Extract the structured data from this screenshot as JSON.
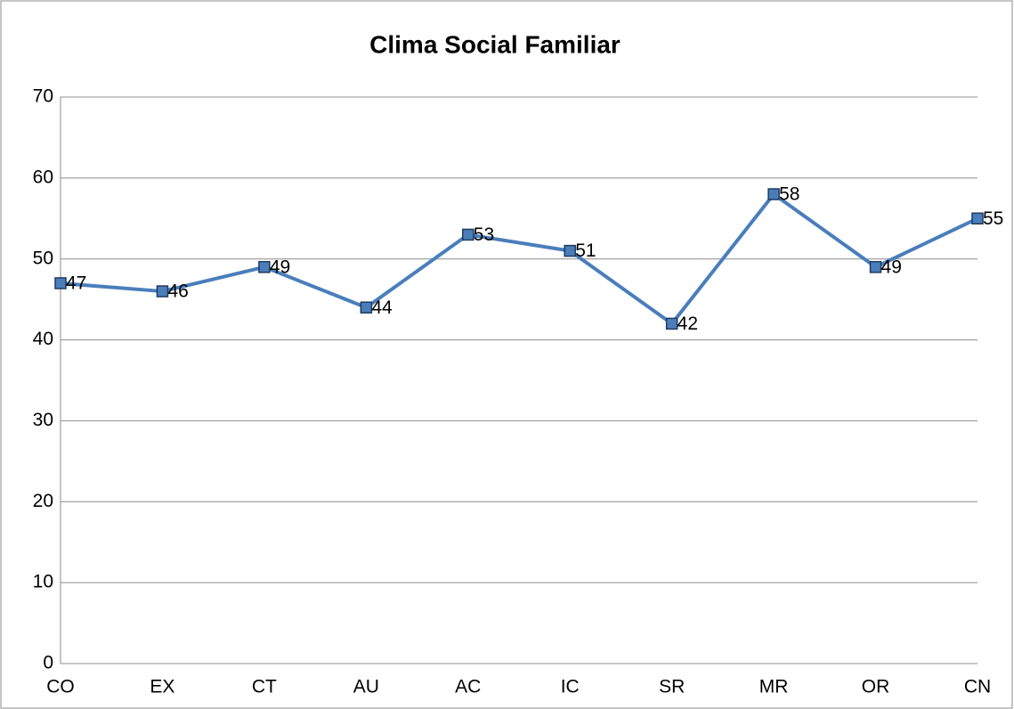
{
  "chart_data": {
    "type": "line",
    "title": "Clima Social Familiar",
    "categories": [
      "CO",
      "EX",
      "CT",
      "AU",
      "AC",
      "IC",
      "SR",
      "MR",
      "OR",
      "CN"
    ],
    "series": [
      {
        "name": "Clima Social Familiar",
        "color": "#4a7ebb",
        "values": [
          47,
          46,
          49,
          44,
          53,
          51,
          42,
          58,
          49,
          55
        ]
      }
    ],
    "ylim": [
      0,
      70
    ],
    "yticks": [
      0,
      10,
      20,
      30,
      40,
      50,
      60,
      70
    ],
    "grid": true,
    "data_labels": true
  }
}
